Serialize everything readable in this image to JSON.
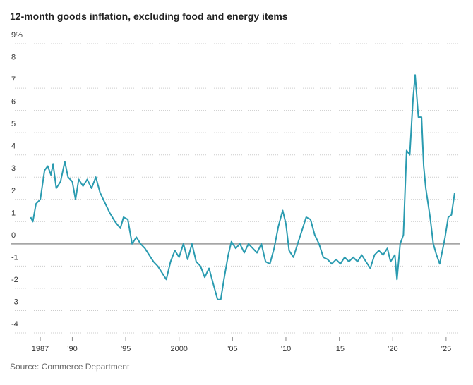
{
  "chart_data": {
    "type": "line",
    "title": "12-month goods inflation, excluding food and energy items",
    "source": "Source: Commerce Department",
    "color": "#2a9bb0",
    "grid": true,
    "x": [
      1986.1,
      1986.3,
      1986.6,
      1987.0,
      1987.4,
      1987.7,
      1988.0,
      1988.2,
      1988.5,
      1988.9,
      1989.3,
      1989.6,
      1990.0,
      1990.3,
      1990.6,
      1991.0,
      1991.4,
      1991.8,
      1992.2,
      1992.6,
      1993.0,
      1993.5,
      1994.0,
      1994.5,
      1994.8,
      1995.2,
      1995.6,
      1996.0,
      1996.4,
      1996.8,
      1997.2,
      1997.6,
      1998.0,
      1998.4,
      1998.8,
      1999.2,
      1999.6,
      2000.0,
      2000.4,
      2000.8,
      2001.2,
      2001.6,
      2002.0,
      2002.4,
      2002.8,
      2003.2,
      2003.6,
      2003.9,
      2004.2,
      2004.6,
      2004.9,
      2005.3,
      2005.7,
      2006.1,
      2006.5,
      2006.9,
      2007.3,
      2007.7,
      2008.1,
      2008.5,
      2008.9,
      2009.3,
      2009.7,
      2010.0,
      2010.3,
      2010.7,
      2011.1,
      2011.5,
      2011.9,
      2012.3,
      2012.7,
      2013.1,
      2013.5,
      2013.9,
      2014.3,
      2014.7,
      2015.1,
      2015.5,
      2015.9,
      2016.3,
      2016.7,
      2017.1,
      2017.5,
      2017.9,
      2018.3,
      2018.7,
      2019.1,
      2019.5,
      2019.8,
      2020.2,
      2020.4,
      2020.7,
      2021.0,
      2021.3,
      2021.6,
      2021.9,
      2022.1,
      2022.4,
      2022.7,
      2022.9,
      2023.1,
      2023.5,
      2023.8,
      2024.1,
      2024.4,
      2024.7,
      2024.9,
      2025.2,
      2025.5,
      2025.8
    ],
    "values": [
      1.2,
      1.0,
      1.8,
      2.0,
      3.3,
      3.5,
      3.1,
      3.6,
      2.5,
      2.8,
      3.7,
      3.0,
      2.8,
      2.0,
      2.9,
      2.6,
      2.9,
      2.5,
      3.0,
      2.3,
      1.9,
      1.4,
      1.0,
      0.7,
      1.2,
      1.1,
      0.0,
      0.3,
      0.0,
      -0.2,
      -0.5,
      -0.8,
      -1.0,
      -1.3,
      -1.6,
      -0.8,
      -0.3,
      -0.6,
      0.0,
      -0.7,
      0.0,
      -0.8,
      -1.0,
      -1.5,
      -1.1,
      -1.8,
      -2.5,
      -2.5,
      -1.6,
      -0.5,
      0.1,
      -0.2,
      0.0,
      -0.4,
      0.0,
      -0.2,
      -0.4,
      0.0,
      -0.8,
      -0.9,
      -0.2,
      0.8,
      1.5,
      0.9,
      -0.3,
      -0.6,
      0.0,
      0.6,
      1.2,
      1.1,
      0.4,
      0.0,
      -0.6,
      -0.7,
      -0.9,
      -0.7,
      -0.9,
      -0.6,
      -0.8,
      -0.6,
      -0.8,
      -0.5,
      -0.8,
      -1.1,
      -0.5,
      -0.3,
      -0.5,
      -0.2,
      -0.8,
      -0.5,
      -1.6,
      0.0,
      0.4,
      4.2,
      4.0,
      6.5,
      7.6,
      5.7,
      5.7,
      3.5,
      2.5,
      1.2,
      0.0,
      -0.5,
      -0.9,
      -0.2,
      0.3,
      1.2,
      1.3,
      2.3
    ],
    "xlim": [
      1984.22,
      2026.33
    ],
    "xticks": [
      {
        "value": 1987,
        "label": "1987"
      },
      {
        "value": 1990,
        "label": "’90"
      },
      {
        "value": 1995,
        "label": "’95"
      },
      {
        "value": 2000,
        "label": "2000"
      },
      {
        "value": 2005,
        "label": "’05"
      },
      {
        "value": 2010,
        "label": "’10"
      },
      {
        "value": 2015,
        "label": "’15"
      },
      {
        "value": 2020,
        "label": "’20"
      },
      {
        "value": 2025,
        "label": "’25"
      }
    ],
    "ylim": [
      -4,
      9
    ],
    "yticks": [
      -4,
      -3,
      -2,
      -1,
      0,
      1,
      2,
      3,
      4,
      5,
      6,
      7,
      8,
      {
        "value": 9,
        "label": "9%"
      }
    ]
  }
}
